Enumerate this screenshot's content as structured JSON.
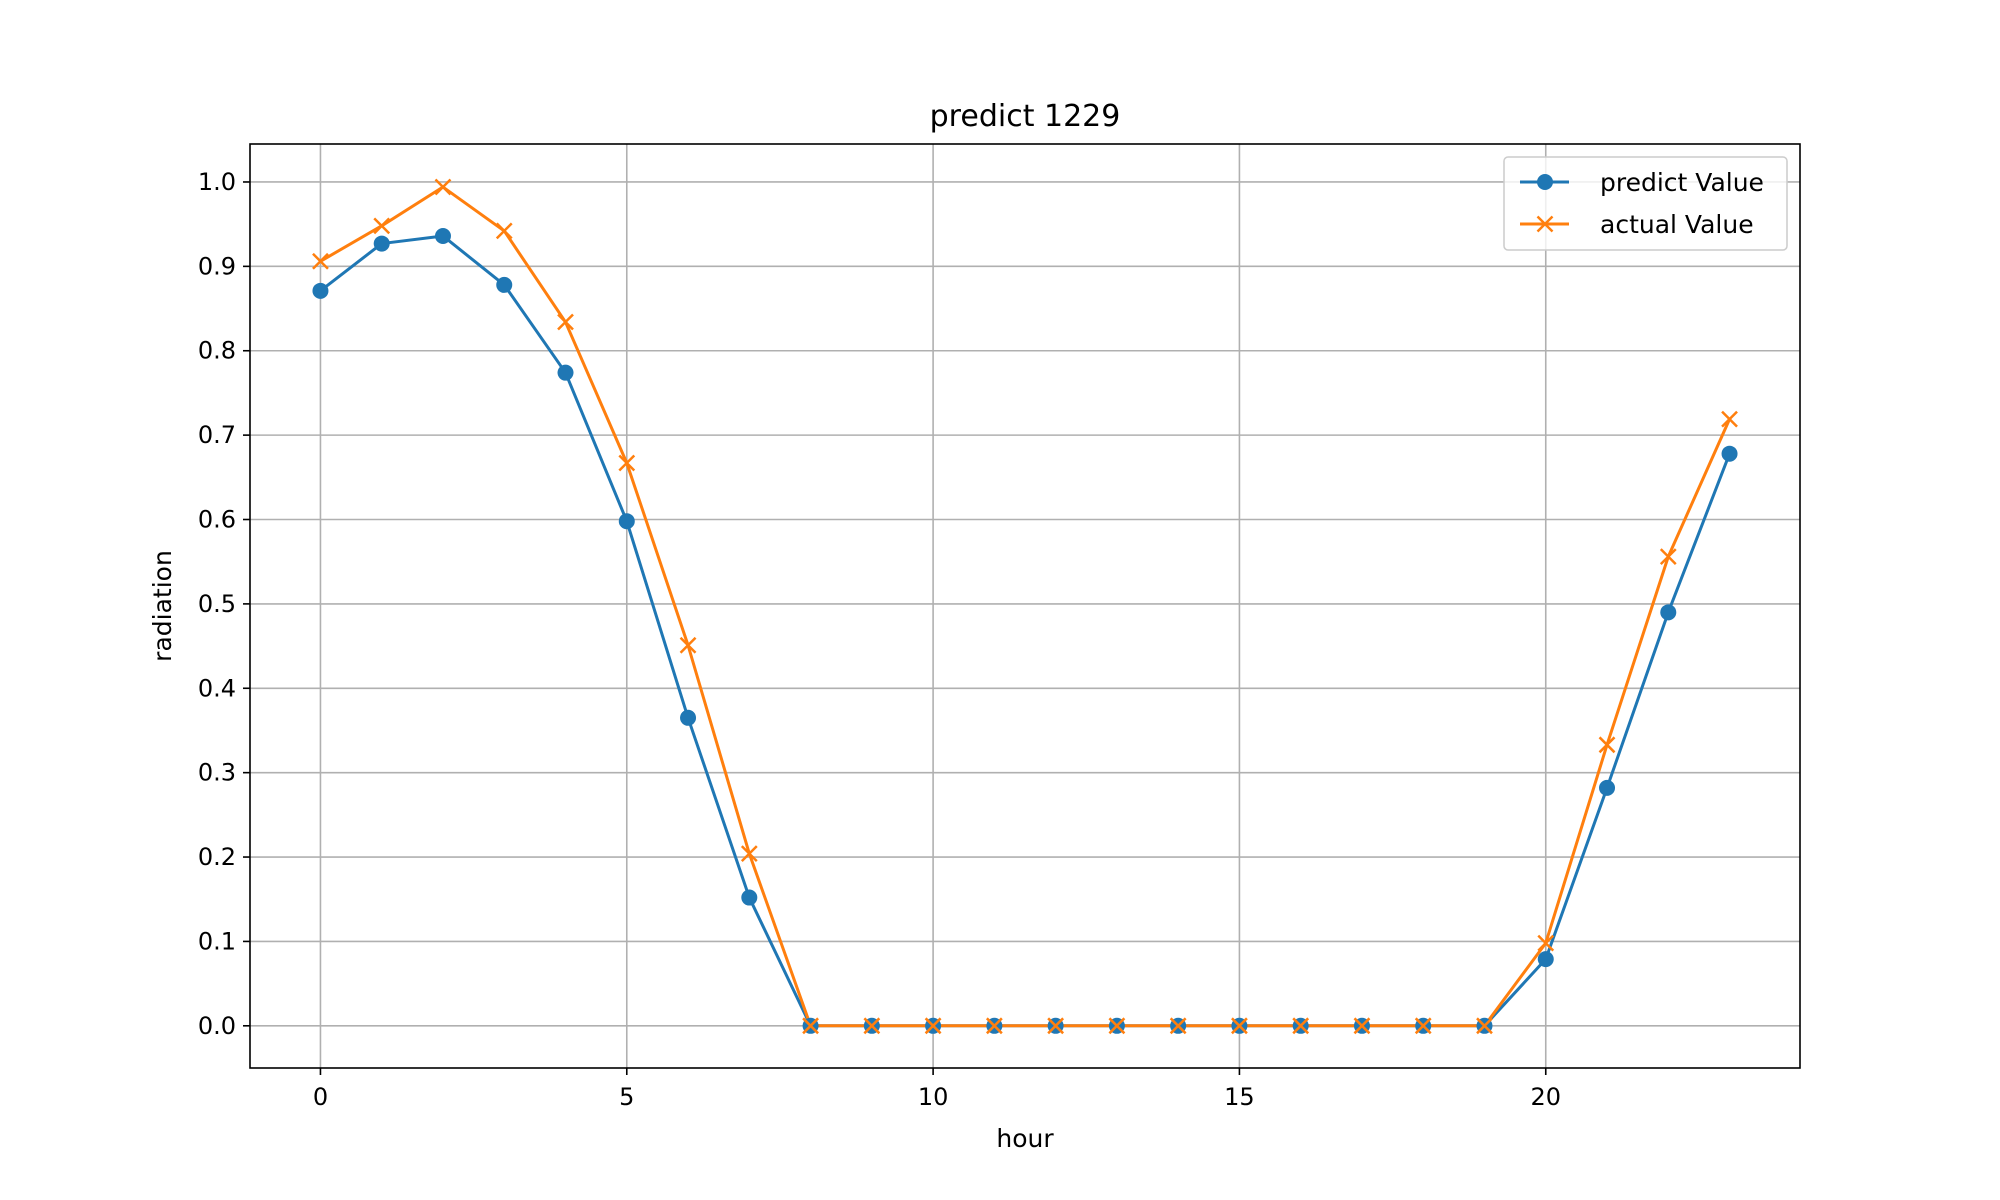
{
  "chart_data": {
    "type": "line",
    "title": "predict 1229",
    "xlabel": "hour",
    "ylabel": "radiation",
    "xlim": [
      -1.15,
      24.15
    ],
    "ylim": [
      -0.05,
      1.045
    ],
    "xticks": [
      0,
      5,
      10,
      15,
      20
    ],
    "yticks": [
      0.0,
      0.1,
      0.2,
      0.3,
      0.4,
      0.5,
      0.6,
      0.7,
      0.8,
      0.9,
      1.0
    ],
    "grid": true,
    "legend": "top-right",
    "x": [
      0,
      1,
      2,
      3,
      4,
      5,
      6,
      7,
      8,
      9,
      10,
      11,
      12,
      13,
      14,
      15,
      16,
      17,
      18,
      19,
      20,
      21,
      22,
      23
    ],
    "series": [
      {
        "name": "predict Value",
        "color": "#1f77b4",
        "marker": "circle",
        "values": [
          0.871,
          0.927,
          0.936,
          0.878,
          0.774,
          0.598,
          0.365,
          0.152,
          0,
          0,
          0,
          0,
          0,
          0,
          0,
          0,
          0,
          0,
          0,
          0,
          0.079,
          0.282,
          0.49,
          0.678
        ]
      },
      {
        "name": "actual Value",
        "color": "#ff7f0e",
        "marker": "x",
        "values": [
          0.906,
          0.948,
          0.994,
          0.942,
          0.834,
          0.667,
          0.451,
          0.204,
          0,
          0,
          0,
          0,
          0,
          0,
          0,
          0,
          0,
          0,
          0,
          0,
          0.098,
          0.333,
          0.556,
          0.719
        ]
      }
    ]
  }
}
